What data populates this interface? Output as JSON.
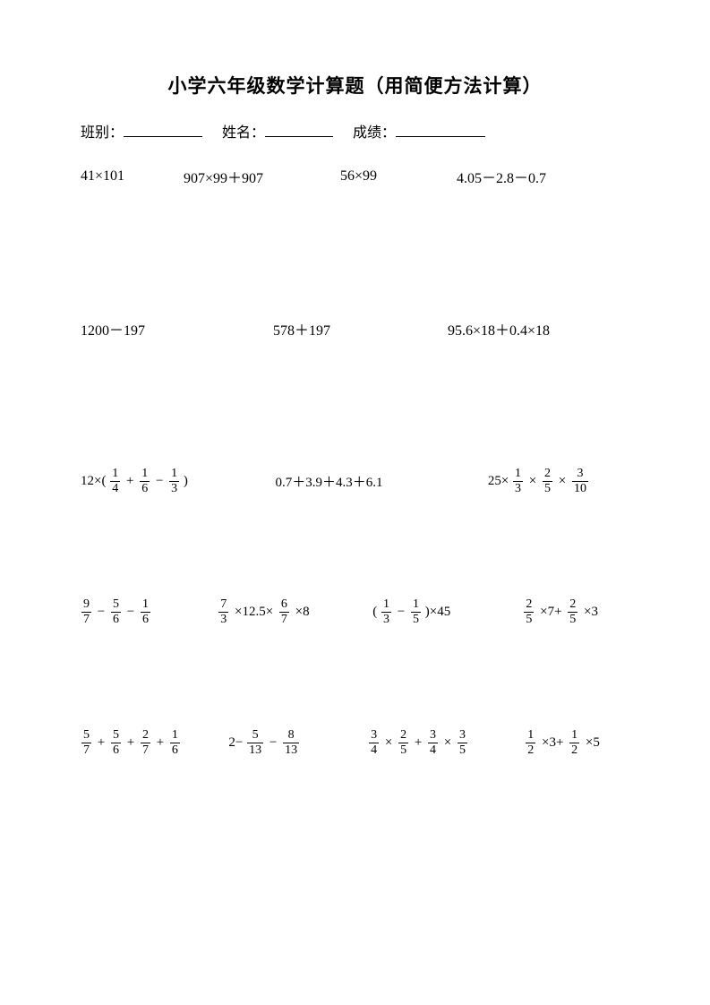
{
  "title": "小学六年级数学计算题（用简便方法计算）",
  "info": {
    "class_label": "班别：",
    "name_label": "姓名：",
    "score_label": "成绩：",
    "underline_w1": 88,
    "underline_w2": 76,
    "underline_w3": 100
  },
  "row1": {
    "c1": "41×101",
    "c2": "907×99＋907",
    "c3": "56×99",
    "c4": "4.05－2.8－0.7",
    "w1": 115,
    "w2": 175,
    "w3": 130,
    "w4": 160
  },
  "row2": {
    "c1": "1200－197",
    "c2": "578＋197",
    "c3": "95.6×18＋0.4×18",
    "w1": 215,
    "w2": 195,
    "w3": 200
  },
  "row3": {
    "c1": {
      "pre": "12×(",
      "f1n": "1",
      "f1d": "4",
      "op1": "+",
      "f2n": "1",
      "f2d": "6",
      "op2": "−",
      "f3n": "1",
      "f3d": "3",
      "post": " )"
    },
    "c2": "0.7＋3.9＋4.3＋6.1",
    "c3": {
      "pre": "25×",
      "f1n": "1",
      "f1d": "3",
      "op1": "×",
      "f2n": "2",
      "f2d": "5",
      "op2": "×",
      "f3n": "3",
      "f3d": "10"
    },
    "w1": 220,
    "w2": 240,
    "w3": 160
  },
  "row4": {
    "c1": {
      "f1n": "9",
      "f1d": "7",
      "op1": "−",
      "f2n": "5",
      "f2d": "6",
      "op2": "−",
      "f3n": "1",
      "f3d": "6"
    },
    "c2": {
      "f1n": "7",
      "f1d": "3",
      "op1": "×12.5×",
      "f2n": "6",
      "f2d": "7",
      "op2": "×8"
    },
    "c3": {
      "pre": "( ",
      "f1n": "1",
      "f1d": "3",
      "op1": "−",
      "f2n": "1",
      "f2d": "5",
      "post": " )×45"
    },
    "c4": {
      "f1n": "2",
      "f1d": "5",
      "op1": "×7+",
      "f2n": "2",
      "f2d": "5",
      "op2": "×3"
    },
    "w1": 155,
    "w2": 175,
    "w3": 170,
    "w4": 120
  },
  "row5": {
    "c1": {
      "f1n": "5",
      "f1d": "7",
      "op1": "+",
      "f2n": "5",
      "f2d": "6",
      "op2": "+",
      "f3n": "2",
      "f3d": "7",
      "op3": "+",
      "f4n": "1",
      "f4d": "6"
    },
    "c2": {
      "pre": "2−",
      "f1n": "5",
      "f1d": "13",
      "op1": "−",
      "f2n": "8",
      "f2d": "13"
    },
    "c3": {
      "f1n": "3",
      "f1d": "4",
      "op1": "×",
      "f2n": "2",
      "f2d": "5",
      "op2": "+",
      "f3n": "3",
      "f3d": "4",
      "op3": "×",
      "f4n": "3",
      "f4d": "5"
    },
    "c4": {
      "f1n": "1",
      "f1d": "2",
      "op1": "×3+",
      "f2n": "1",
      "f2d": "2",
      "op2": "×5"
    },
    "w1": 170,
    "w2": 160,
    "w3": 180,
    "w4": 120
  }
}
